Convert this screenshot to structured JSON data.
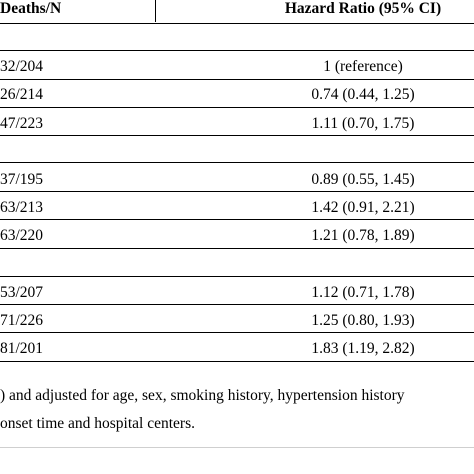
{
  "header": {
    "col_deaths": "Deaths/N",
    "col_hr": "Hazard Ratio (95% CI)"
  },
  "groups": [
    {
      "rows": [
        {
          "deaths": "32/204",
          "hr": "1 (reference)"
        },
        {
          "deaths": "26/214",
          "hr": "0.74 (0.44, 1.25)"
        },
        {
          "deaths": "47/223",
          "hr": "1.11 (0.70, 1.75)"
        }
      ]
    },
    {
      "rows": [
        {
          "deaths": "37/195",
          "hr": "0.89 (0.55, 1.45)"
        },
        {
          "deaths": "63/213",
          "hr": "1.42 (0.91, 2.21)"
        },
        {
          "deaths": "63/220",
          "hr": "1.21 (0.78, 1.89)"
        }
      ]
    },
    {
      "rows": [
        {
          "deaths": "53/207",
          "hr": "1.12 (0.71, 1.78)"
        },
        {
          "deaths": "71/226",
          "hr": "1.25 (0.80, 1.93)"
        },
        {
          "deaths": "81/201",
          "hr": "1.83 (1.19, 2.82)"
        }
      ]
    }
  ],
  "footnote": {
    "line1": ") and adjusted for age, sex, smoking history, hypertension history",
    "line2": "onset time and hospital centers."
  }
}
